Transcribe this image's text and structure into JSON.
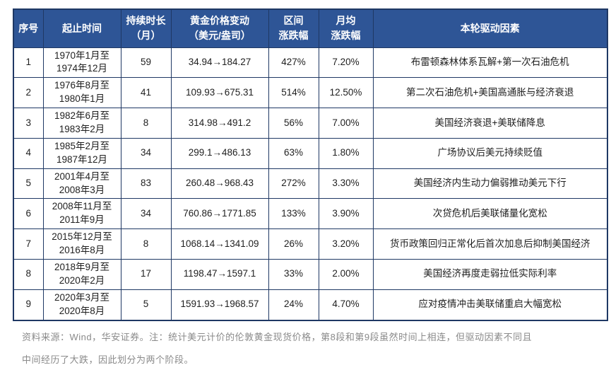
{
  "table": {
    "headers": [
      "序号",
      "起止时间",
      "持续时长\n（月）",
      "黄金价格变动\n（美元/盎司）",
      "区间\n涨跌幅",
      "月均\n涨跌幅",
      "本轮驱动因素"
    ],
    "rows": [
      {
        "no": "1",
        "period": "1970年1月至\n1974年12月",
        "months": "59",
        "price_change": "34.94→184.27",
        "range_pct": "427%",
        "monthly_pct": "7.20%",
        "driver": "布雷顿森林体系瓦解+第一次石油危机"
      },
      {
        "no": "2",
        "period": "1976年8月至\n1980年1月",
        "months": "41",
        "price_change": "109.93→675.31",
        "range_pct": "514%",
        "monthly_pct": "12.50%",
        "driver": "第二次石油危机+美国高通胀与经济衰退"
      },
      {
        "no": "3",
        "period": "1982年6月至\n1983年2月",
        "months": "8",
        "price_change": "314.98→491.2",
        "range_pct": "56%",
        "monthly_pct": "7.00%",
        "driver": "美国经济衰退+美联储降息"
      },
      {
        "no": "4",
        "period": "1985年2月至\n1987年12月",
        "months": "34",
        "price_change": "299.1→486.13",
        "range_pct": "63%",
        "monthly_pct": "1.80%",
        "driver": "广场协议后美元持续贬值"
      },
      {
        "no": "5",
        "period": "2001年4月至\n2008年3月",
        "months": "83",
        "price_change": "260.48→968.43",
        "range_pct": "272%",
        "monthly_pct": "3.30%",
        "driver": "美国经济内生动力偏弱推动美元下行"
      },
      {
        "no": "6",
        "period": "2008年11月至\n2011年9月",
        "months": "34",
        "price_change": "760.86→1771.85",
        "range_pct": "133%",
        "monthly_pct": "3.90%",
        "driver": "次贷危机后美联储量化宽松"
      },
      {
        "no": "7",
        "period": "2015年12月至\n2016年8月",
        "months": "8",
        "price_change": "1068.14→1341.09",
        "range_pct": "26%",
        "monthly_pct": "3.20%",
        "driver": "货币政策回归正常化后首次加息后抑制美国经济"
      },
      {
        "no": "8",
        "period": "2018年9月至\n2020年2月",
        "months": "17",
        "price_change": "1198.47→1597.1",
        "range_pct": "33%",
        "monthly_pct": "2.00%",
        "driver": "美国经济再度走弱拉低实际利率"
      },
      {
        "no": "9",
        "period": "2020年3月至\n2020年8月",
        "months": "5",
        "price_change": "1591.93→1968.57",
        "range_pct": "24%",
        "monthly_pct": "4.70%",
        "driver": "应对疫情冲击美联储重启大幅宽松"
      }
    ]
  },
  "footnote": {
    "line1": "资料来源：Wind，华安证券。注：统计美元计价的伦敦黄金现货价格，第8段和第9段虽然时间上相连，但驱动因素不同且",
    "line2": "中间经历了大跌，因此划分为两个阶段。"
  },
  "colors": {
    "header_bg": "#2E5596",
    "border": "#1F3864",
    "footnote_text": "#8A8A8A"
  }
}
